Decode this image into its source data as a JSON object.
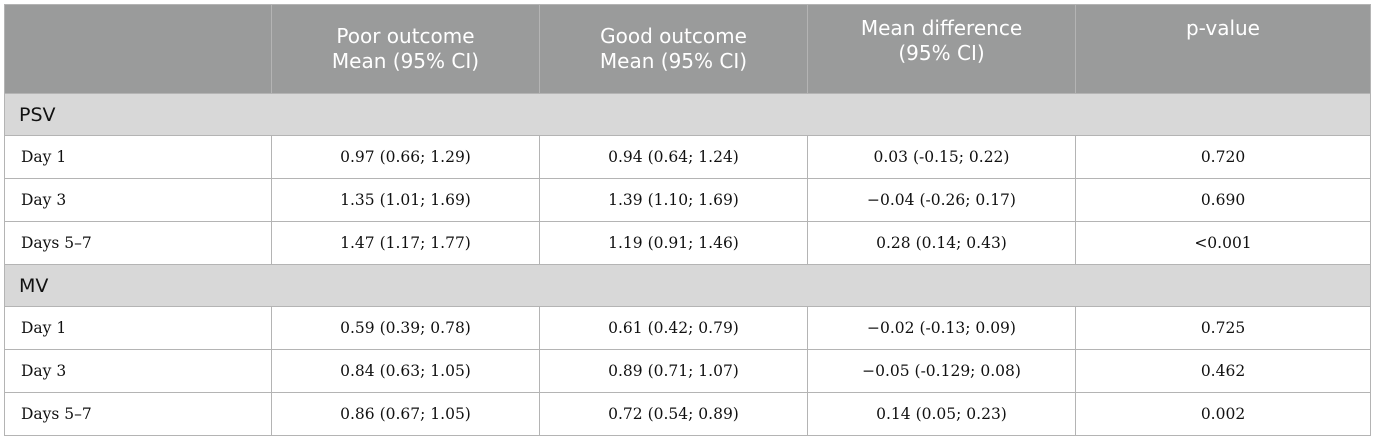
{
  "header": {
    "col1": [
      "Poor outcome",
      "Mean (95% CI)"
    ],
    "col2": [
      "Good outcome",
      "Mean (95% CI)"
    ],
    "col3": [
      "Mean difference",
      "(95% CI)"
    ],
    "col4": "p-value"
  },
  "sections": [
    {
      "name": "PSV",
      "rows": [
        {
          "label": "Day 1",
          "poor": "0.97 (0.66; 1.29)",
          "good": "0.94 (0.64; 1.24)",
          "diff": "0.03 (-0.15; 0.22)",
          "p": "0.720"
        },
        {
          "label": "Day 3",
          "poor": "1.35 (1.01; 1.69)",
          "good": "1.39 (1.10; 1.69)",
          "diff": "−0.04 (-0.26; 0.17)",
          "p": "0.690"
        },
        {
          "label": "Days 5–7",
          "poor": "1.47 (1.17; 1.77)",
          "good": "1.19 (0.91; 1.46)",
          "diff": "0.28 (0.14; 0.43)",
          "p": "<0.001"
        }
      ]
    },
    {
      "name": "MV",
      "rows": [
        {
          "label": "Day 1",
          "poor": "0.59 (0.39; 0.78)",
          "good": "0.61 (0.42; 0.79)",
          "diff": "−0.02 (-0.13; 0.09)",
          "p": "0.725"
        },
        {
          "label": "Day 3",
          "poor": "0.84 (0.63; 1.05)",
          "good": "0.89 (0.71; 1.07)",
          "diff": "−0.05 (-0.129; 0.08)",
          "p": "0.462"
        },
        {
          "label": "Days 5–7",
          "poor": "0.86 (0.67; 1.05)",
          "good": "0.72 (0.54; 0.89)",
          "diff": "0.14 (0.05; 0.23)",
          "p": "0.002"
        }
      ]
    }
  ]
}
